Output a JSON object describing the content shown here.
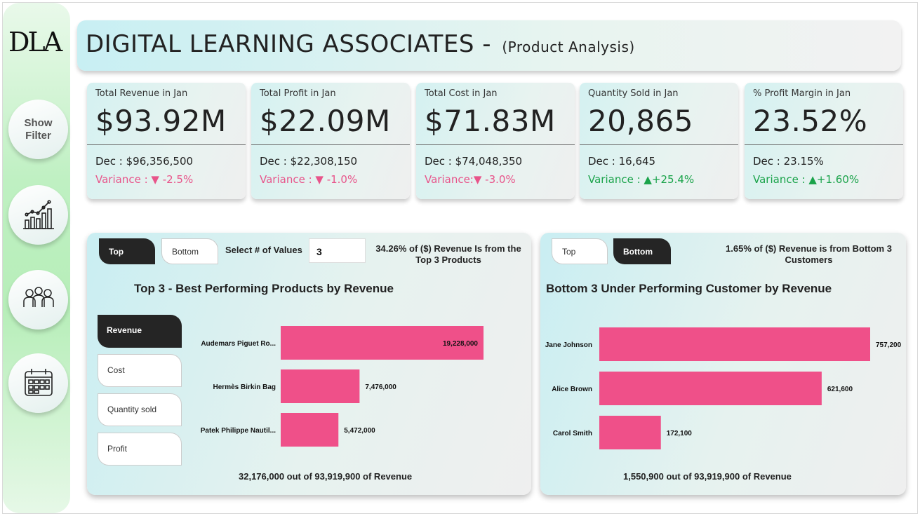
{
  "brand": {
    "logo": "DLA"
  },
  "sidebar": {
    "show_filter": "Show Filter",
    "items": [
      {
        "icon": "analytics-chart-icon"
      },
      {
        "icon": "customers-group-icon"
      },
      {
        "icon": "calendar-icon"
      }
    ]
  },
  "header": {
    "title": "DIGITAL LEARNING ASSOCIATES - ",
    "subtitle": "(Product Analysis)"
  },
  "kpis": [
    {
      "title": "Total Revenue in Jan",
      "value": "$93.92M",
      "prev": "Dec : $96,356,500",
      "variance": "Variance : ▼ -2.5%",
      "trend": "down"
    },
    {
      "title": "Total Profit in Jan",
      "value": "$22.09M",
      "prev": "Dec : $22,308,150",
      "variance": "Variance : ▼ -1.0%",
      "trend": "down"
    },
    {
      "title": "Total Cost in Jan",
      "value": "$71.83M",
      "prev": "Dec : $74,048,350",
      "variance": "Variance:▼ -3.0%",
      "trend": "down"
    },
    {
      "title": "Quantity Sold in Jan",
      "value": "20,865",
      "prev": "Dec : 16,645",
      "variance": "Variance : ▲+25.4%",
      "trend": "up"
    },
    {
      "title": "% Profit Margin in Jan",
      "value": "23.52%",
      "prev": "Dec : 23.15%",
      "variance": "Variance : ▲+1.60%",
      "trend": "up"
    }
  ],
  "left_panel": {
    "toggle_top": "Top",
    "toggle_bottom": "Bottom",
    "select_label": "Select # of Values",
    "select_value": "3",
    "note": "34.26% of ($) Revenue Is from the Top 3 Products",
    "chart_title": "Top 3 - Best Performing Products by Revenue",
    "metrics": [
      "Revenue",
      "Cost",
      "Quantity sold",
      "Profit"
    ],
    "footer": "32,176,000 out of 93,919,900 of Revenue"
  },
  "right_panel": {
    "toggle_top": "Top",
    "toggle_bottom": "Bottom",
    "note": "1.65% of ($) Revenue is from Bottom 3 Customers",
    "chart_title": "Bottom 3 Under Performing Customer by Revenue",
    "footer": "1,550,900 out of 93,919,900 of Revenue"
  },
  "colors": {
    "bar": "#ef5089",
    "negative": "#e8548a",
    "positive": "#1aa34a",
    "active_toggle": "#252525"
  },
  "chart_data": [
    {
      "type": "bar",
      "orientation": "horizontal",
      "title": "Top 3 - Best Performing Products by Revenue",
      "categories": [
        "Audemars Piguet Ro...",
        "Hermès Birkin Bag",
        "Patek Philippe Nautil..."
      ],
      "values": [
        19228000,
        7476000,
        5472000
      ],
      "labels": [
        "19,228,000",
        "7,476,000",
        "5,472,000"
      ],
      "xlim": [
        0,
        19228000
      ]
    },
    {
      "type": "bar",
      "orientation": "horizontal",
      "title": "Bottom 3 Under Performing Customer by Revenue",
      "categories": [
        "Jane Johnson",
        "Alice Brown",
        "Carol Smith"
      ],
      "values": [
        757200,
        621600,
        172100
      ],
      "labels": [
        "757,200",
        "621,600",
        "172,100"
      ],
      "xlim": [
        0,
        757200
      ]
    }
  ]
}
